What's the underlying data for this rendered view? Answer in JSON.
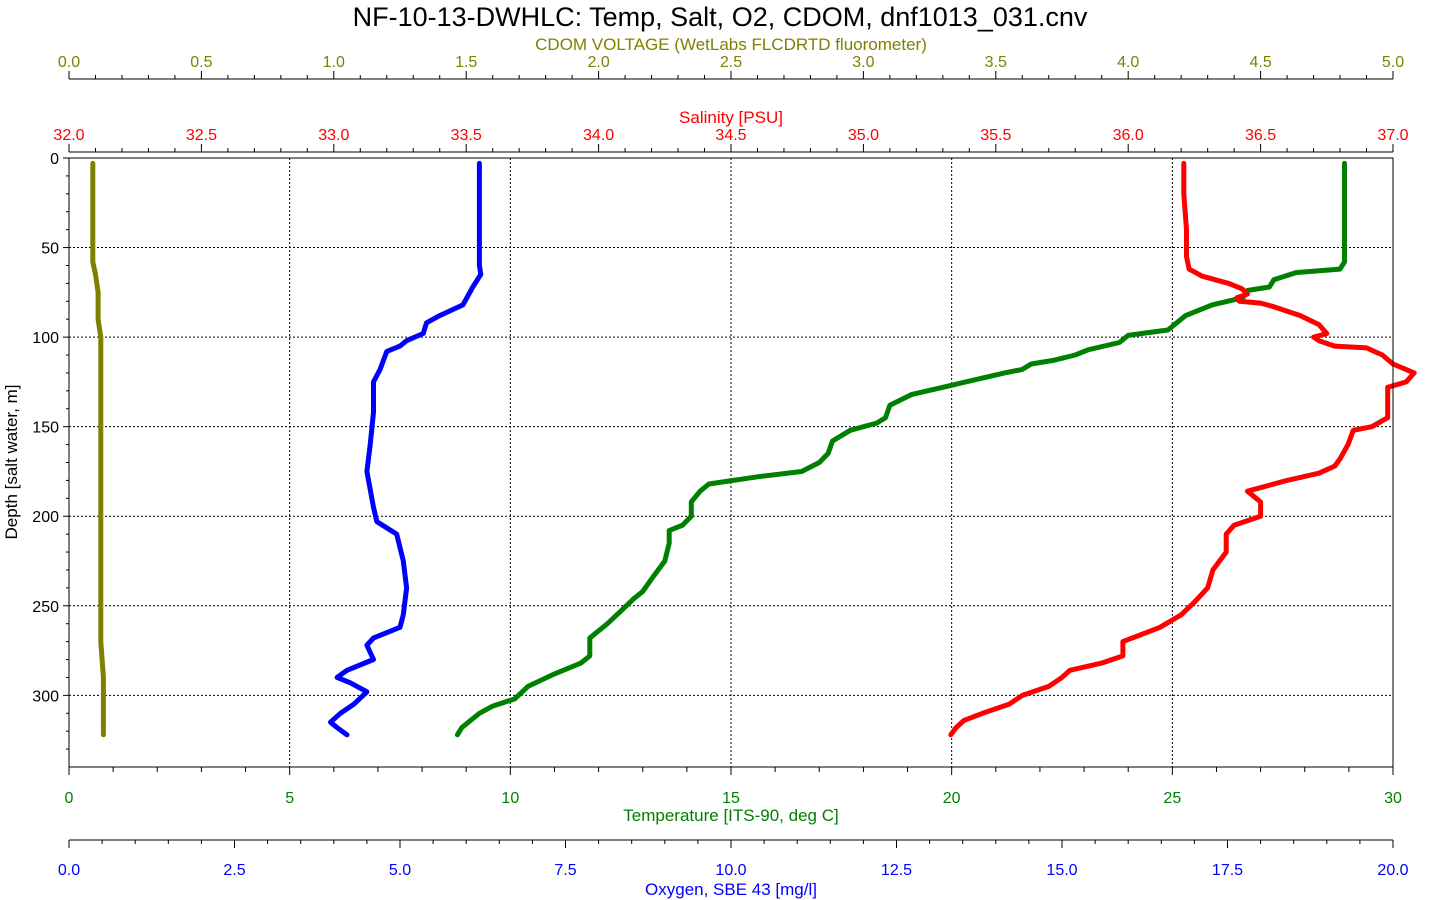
{
  "chart_data": {
    "type": "line",
    "title": "NF-10-13-DWHLC: Temp, Salt, O2, CDOM, dnf1013_031.cnv",
    "y_axis": {
      "label": "Depth [salt water, m]",
      "range": [
        0,
        340
      ],
      "ticks": [
        0,
        50,
        100,
        150,
        200,
        250,
        300
      ],
      "tick_labels": [
        "0",
        "50",
        "100",
        "150",
        "200",
        "250",
        "300"
      ],
      "inverted": true,
      "grid": true
    },
    "x_axes": [
      {
        "id": "cdom",
        "label": "CDOM VOLTAGE (WetLabs FLCDRTD fluorometer)",
        "color": "#808000",
        "position": "top",
        "range": [
          0,
          5
        ],
        "ticks": [
          0,
          0.5,
          1,
          1.5,
          2,
          2.5,
          3,
          3.5,
          4,
          4.5,
          5
        ],
        "tick_labels": [
          "0.0",
          "0.5",
          "1.0",
          "1.5",
          "2.0",
          "2.5",
          "3.0",
          "3.5",
          "4.0",
          "4.5",
          "5.0"
        ]
      },
      {
        "id": "salt",
        "label": "Salinity [PSU]",
        "color": "#ff0000",
        "position": "top",
        "range": [
          32,
          37
        ],
        "ticks": [
          32,
          32.5,
          33,
          33.5,
          34,
          34.5,
          35,
          35.5,
          36,
          36.5,
          37
        ],
        "tick_labels": [
          "32.0",
          "32.5",
          "33.0",
          "33.5",
          "34.0",
          "34.5",
          "35.0",
          "35.5",
          "36.0",
          "36.5",
          "37.0"
        ]
      },
      {
        "id": "temp",
        "label": "Temperature [ITS-90, deg C]",
        "color": "#008000",
        "position": "bottom",
        "range": [
          0,
          30
        ],
        "ticks": [
          0,
          5,
          10,
          15,
          20,
          25,
          30
        ],
        "tick_labels": [
          "0",
          "5",
          "10",
          "15",
          "20",
          "25",
          "30"
        ],
        "grid": true
      },
      {
        "id": "oxy",
        "label": "Oxygen, SBE 43 [mg/l]",
        "color": "#0000ff",
        "position": "bottom",
        "range": [
          0,
          20
        ],
        "ticks": [
          0,
          2.5,
          5,
          7.5,
          10,
          12.5,
          15,
          17.5,
          20
        ],
        "tick_labels": [
          "0.0",
          "2.5",
          "5.0",
          "7.5",
          "10.0",
          "12.5",
          "15.0",
          "17.5",
          "20.0"
        ]
      }
    ],
    "series": [
      {
        "name": "CDOM VOLTAGE (WetLabs FLCDRTD fluorometer)",
        "axis": "cdom",
        "color": "#808000",
        "points": [
          [
            0.09,
            3
          ],
          [
            0.09,
            20
          ],
          [
            0.09,
            40
          ],
          [
            0.09,
            58
          ],
          [
            0.1,
            65
          ],
          [
            0.11,
            75
          ],
          [
            0.11,
            90
          ],
          [
            0.12,
            100
          ],
          [
            0.12,
            120
          ],
          [
            0.12,
            150
          ],
          [
            0.12,
            175
          ],
          [
            0.12,
            200
          ],
          [
            0.12,
            230
          ],
          [
            0.12,
            250
          ],
          [
            0.12,
            270
          ],
          [
            0.13,
            290
          ],
          [
            0.13,
            305
          ],
          [
            0.13,
            322
          ]
        ]
      },
      {
        "name": "Oxygen, SBE 43 [mg/l]",
        "axis": "oxy",
        "color": "#0000ff",
        "points": [
          [
            6.2,
            3
          ],
          [
            6.2,
            20
          ],
          [
            6.2,
            45
          ],
          [
            6.2,
            60
          ],
          [
            6.22,
            65
          ],
          [
            6.1,
            72
          ],
          [
            5.95,
            82
          ],
          [
            5.6,
            88
          ],
          [
            5.4,
            92
          ],
          [
            5.35,
            98
          ],
          [
            5.1,
            102
          ],
          [
            5.0,
            105
          ],
          [
            4.8,
            108
          ],
          [
            4.7,
            118
          ],
          [
            4.6,
            125
          ],
          [
            4.6,
            135
          ],
          [
            4.6,
            142
          ],
          [
            4.55,
            160
          ],
          [
            4.5,
            175
          ],
          [
            4.55,
            185
          ],
          [
            4.6,
            195
          ],
          [
            4.65,
            203
          ],
          [
            4.95,
            210
          ],
          [
            5.05,
            225
          ],
          [
            5.1,
            240
          ],
          [
            5.05,
            255
          ],
          [
            5.0,
            262
          ],
          [
            4.6,
            268
          ],
          [
            4.5,
            272
          ],
          [
            4.6,
            280
          ],
          [
            4.2,
            286
          ],
          [
            4.05,
            290
          ],
          [
            4.25,
            293
          ],
          [
            4.5,
            298
          ],
          [
            4.3,
            305
          ],
          [
            4.1,
            310
          ],
          [
            3.95,
            315
          ],
          [
            4.05,
            318
          ],
          [
            4.2,
            322
          ]
        ]
      },
      {
        "name": "Temperature [ITS-90, deg C]",
        "axis": "temp",
        "color": "#008000",
        "points": [
          [
            28.9,
            3
          ],
          [
            28.9,
            20
          ],
          [
            28.9,
            40
          ],
          [
            28.9,
            58
          ],
          [
            28.8,
            62
          ],
          [
            27.8,
            64
          ],
          [
            27.3,
            68
          ],
          [
            27.2,
            72
          ],
          [
            26.7,
            74
          ],
          [
            26.6,
            78
          ],
          [
            25.9,
            82
          ],
          [
            25.3,
            88
          ],
          [
            25.1,
            92
          ],
          [
            24.9,
            96
          ],
          [
            24.0,
            99
          ],
          [
            23.8,
            103
          ],
          [
            23.1,
            107
          ],
          [
            22.8,
            110
          ],
          [
            22.3,
            113
          ],
          [
            21.8,
            115
          ],
          [
            21.6,
            118
          ],
          [
            21.2,
            120
          ],
          [
            20.5,
            124
          ],
          [
            19.8,
            128
          ],
          [
            19.1,
            132
          ],
          [
            18.6,
            138
          ],
          [
            18.5,
            145
          ],
          [
            18.3,
            148
          ],
          [
            17.7,
            152
          ],
          [
            17.3,
            158
          ],
          [
            17.2,
            165
          ],
          [
            17.0,
            170
          ],
          [
            16.6,
            175
          ],
          [
            15.6,
            178
          ],
          [
            14.5,
            182
          ],
          [
            14.3,
            186
          ],
          [
            14.1,
            192
          ],
          [
            14.1,
            200
          ],
          [
            13.9,
            205
          ],
          [
            13.6,
            208
          ],
          [
            13.6,
            215
          ],
          [
            13.5,
            225
          ],
          [
            13.2,
            235
          ],
          [
            13.0,
            242
          ],
          [
            12.8,
            246
          ],
          [
            12.5,
            253
          ],
          [
            12.2,
            260
          ],
          [
            11.8,
            268
          ],
          [
            11.8,
            278
          ],
          [
            11.6,
            282
          ],
          [
            11.0,
            288
          ],
          [
            10.4,
            295
          ],
          [
            10.1,
            302
          ],
          [
            9.6,
            306
          ],
          [
            9.3,
            310
          ],
          [
            9.1,
            314
          ],
          [
            8.9,
            318
          ],
          [
            8.8,
            322
          ]
        ]
      },
      {
        "name": "Salinity [PSU]",
        "axis": "salt",
        "color": "#ff0000",
        "points": [
          [
            36.21,
            3
          ],
          [
            36.21,
            20
          ],
          [
            36.22,
            40
          ],
          [
            36.22,
            55
          ],
          [
            36.23,
            62
          ],
          [
            36.28,
            66
          ],
          [
            36.38,
            70
          ],
          [
            36.43,
            73
          ],
          [
            36.45,
            76
          ],
          [
            36.41,
            78
          ],
          [
            36.42,
            80
          ],
          [
            36.5,
            81
          ],
          [
            36.55,
            83
          ],
          [
            36.65,
            88
          ],
          [
            36.72,
            93
          ],
          [
            36.75,
            98
          ],
          [
            36.7,
            100
          ],
          [
            36.72,
            102
          ],
          [
            36.78,
            105
          ],
          [
            36.9,
            106
          ],
          [
            36.96,
            110
          ],
          [
            37.0,
            115
          ],
          [
            37.08,
            120
          ],
          [
            37.05,
            125
          ],
          [
            36.98,
            128
          ],
          [
            36.98,
            135
          ],
          [
            36.98,
            145
          ],
          [
            36.92,
            150
          ],
          [
            36.85,
            152
          ],
          [
            36.83,
            160
          ],
          [
            36.8,
            168
          ],
          [
            36.78,
            172
          ],
          [
            36.72,
            176
          ],
          [
            36.6,
            180
          ],
          [
            36.45,
            186
          ],
          [
            36.5,
            192
          ],
          [
            36.5,
            200
          ],
          [
            36.4,
            205
          ],
          [
            36.37,
            210
          ],
          [
            36.37,
            220
          ],
          [
            36.32,
            230
          ],
          [
            36.3,
            240
          ],
          [
            36.25,
            248
          ],
          [
            36.2,
            255
          ],
          [
            36.12,
            262
          ],
          [
            36.05,
            266
          ],
          [
            35.98,
            270
          ],
          [
            35.98,
            278
          ],
          [
            35.9,
            282
          ],
          [
            35.78,
            286
          ],
          [
            35.75,
            290
          ],
          [
            35.7,
            295
          ],
          [
            35.6,
            300
          ],
          [
            35.55,
            305
          ],
          [
            35.45,
            310
          ],
          [
            35.38,
            314
          ],
          [
            35.35,
            318
          ],
          [
            35.33,
            322
          ]
        ]
      }
    ]
  }
}
